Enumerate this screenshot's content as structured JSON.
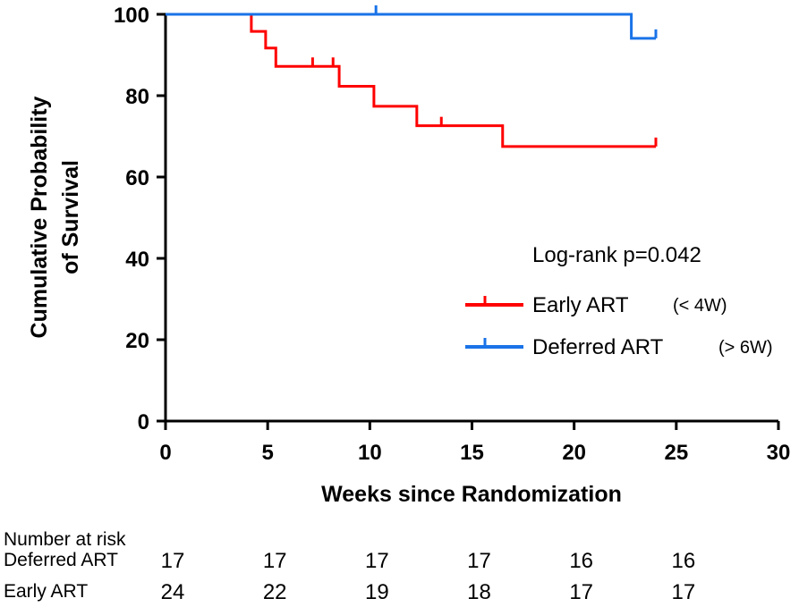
{
  "chart_data": {
    "type": "line",
    "subtype": "kaplan-meier",
    "xlabel": "Weeks since Randomization",
    "ylabel_line1": "Cumulative Probability",
    "ylabel_line2": "of Survival",
    "xlim": [
      0,
      30
    ],
    "ylim": [
      0,
      100
    ],
    "xticks": [
      "0",
      "5",
      "10",
      "15",
      "20",
      "25",
      "30"
    ],
    "yticks": [
      "0",
      "20",
      "40",
      "60",
      "80",
      "100"
    ],
    "annotation": "Log-rank p=0.042",
    "legend_position": "middle-right",
    "series": [
      {
        "name": "Early ART",
        "note": "(< 4W)",
        "color": "#ff0000",
        "steps": [
          [
            0,
            100
          ],
          [
            4.2,
            95.8
          ],
          [
            4.9,
            91.7
          ],
          [
            5.4,
            87.2
          ],
          [
            8.5,
            82.3
          ],
          [
            10.2,
            77.4
          ],
          [
            12.3,
            72.6
          ],
          [
            16.5,
            67.5
          ],
          [
            24,
            67.5
          ]
        ],
        "censored": [
          [
            7.2,
            87.2
          ],
          [
            8.2,
            87.2
          ],
          [
            13.5,
            72.6
          ],
          [
            24,
            67.5
          ]
        ]
      },
      {
        "name": "Deferred ART",
        "note": "(> 6W)",
        "color": "#1a73e8",
        "steps": [
          [
            0,
            100
          ],
          [
            22.8,
            94.1
          ],
          [
            24,
            94.1
          ]
        ],
        "censored": [
          [
            10.3,
            100
          ],
          [
            24,
            94.1
          ]
        ]
      }
    ]
  },
  "risk_table": {
    "title": "Number at risk",
    "rows": [
      {
        "label": "Deferred ART",
        "values": [
          "17",
          "17",
          "17",
          "17",
          "16",
          "16"
        ]
      },
      {
        "label": "Early ART",
        "values": [
          "24",
          "22",
          "19",
          "18",
          "17",
          "17"
        ]
      }
    ]
  }
}
